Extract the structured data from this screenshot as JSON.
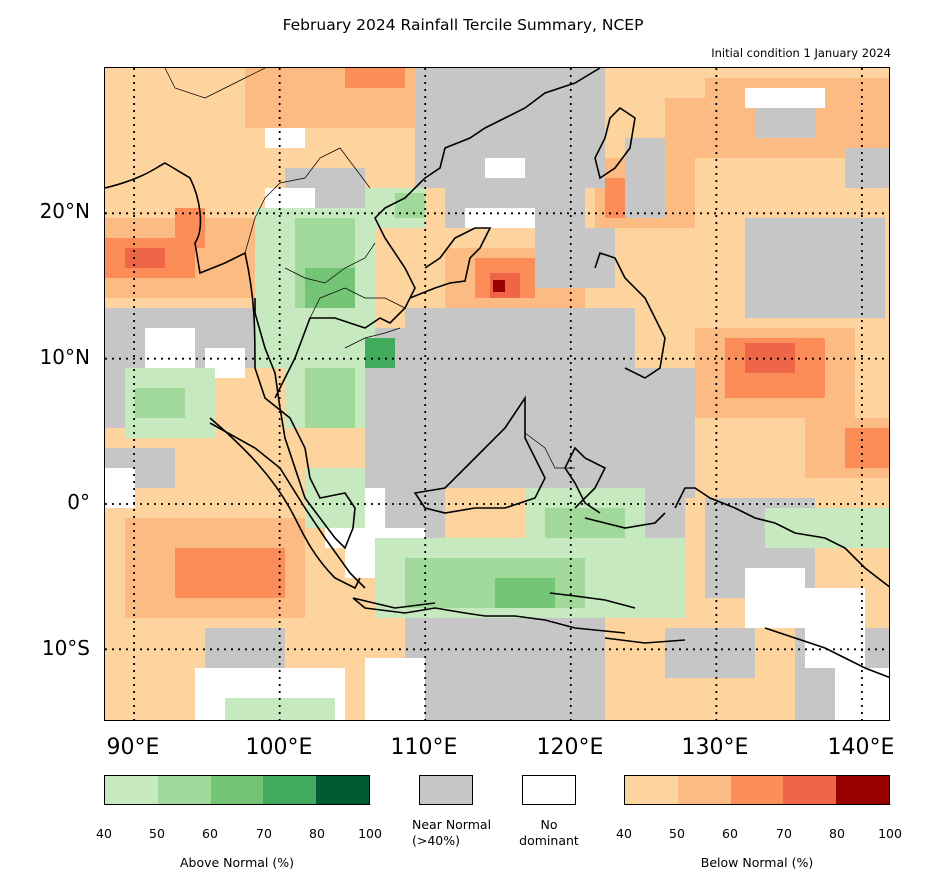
{
  "title": "February 2024 Rainfall Tercile Summary, NCEP",
  "subtitle": "Initial condition 1 January 2024",
  "map": {
    "lon_range": [
      88,
      142
    ],
    "lat_range": [
      -15,
      30
    ],
    "grid_lon": [
      90,
      100,
      110,
      120,
      130,
      140
    ],
    "grid_lat": [
      -10,
      0,
      10,
      20
    ],
    "lat_labels": [
      "20°N",
      "10°N",
      "0°",
      "10°S"
    ],
    "lon_labels": [
      "90°E",
      "100°E",
      "110°E",
      "120°E",
      "130°E",
      "140°E"
    ],
    "background_colors": {
      "above": [
        "#c7e9c0",
        "#a1d99b",
        "#74c476",
        "#41ab5d",
        "#005a32"
      ],
      "below": [
        "#fdd49e",
        "#fdbb84",
        "#fc8d59",
        "#ef6548",
        "#990000"
      ],
      "near_normal": "#c6c6c6",
      "no_dominant": "#ffffff"
    }
  },
  "legend": {
    "above": {
      "ticks": [
        "40",
        "50",
        "60",
        "70",
        "80",
        "100"
      ],
      "caption": "Above Normal (%)"
    },
    "near_normal": {
      "caption_line1": "Near Normal",
      "caption_line2": "(>40%)"
    },
    "no_dominant": {
      "caption_line1": "No",
      "caption_line2": "dominant"
    },
    "below": {
      "ticks": [
        "40",
        "50",
        "60",
        "70",
        "80",
        "100"
      ],
      "caption": "Below Normal (%)"
    }
  }
}
